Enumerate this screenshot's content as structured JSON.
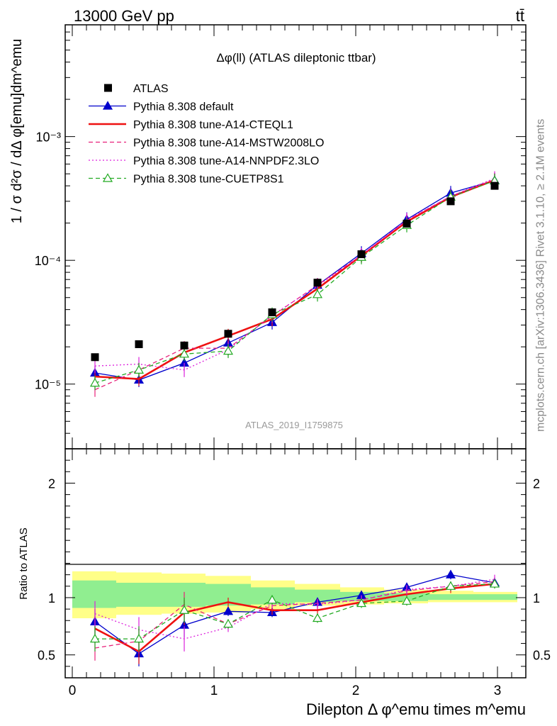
{
  "header": {
    "process": "13000 GeV pp",
    "channel": "tt̄"
  },
  "side_labels": {
    "rivet": "Rivet 3.1.10, ≥ 2.1M events",
    "source": "mcplots.cern.ch [arXiv:1306.3436]"
  },
  "chart_data": [
    {
      "type": "scatter",
      "panel": "main",
      "title": "Δφ(ll) (ATLAS dileptonic ttbar)",
      "ylabel": "1 / σ  d²σ / dΔ φ[emu]dm^emu",
      "analysis_label": "ATLAS_2019_I1759875",
      "log_y": true,
      "xlim": [
        -0.05,
        3.2
      ],
      "ylim": [
        3e-06,
        0.008
      ],
      "y_ticks": [
        "10⁻⁵",
        "10⁻⁴",
        "10⁻³"
      ],
      "legend_position": "upper-left",
      "x": [
        0.16,
        0.47,
        0.79,
        1.1,
        1.41,
        1.73,
        2.04,
        2.36,
        2.67,
        2.98
      ],
      "series": [
        {
          "name": "ATLAS",
          "color": "#000000",
          "style": "marker-square",
          "values": [
            1.65e-05,
            2.1e-05,
            2.05e-05,
            2.55e-05,
            3.8e-05,
            6.6e-05,
            0.000112,
            0.000198,
            0.0003,
            0.0004
          ]
        },
        {
          "name": "Pythia 8.308 default",
          "color": "#0000cc",
          "style": "solid-triangle",
          "values": [
            1.23e-05,
            1.08e-05,
            1.48e-05,
            2.15e-05,
            3.15e-05,
            6.3e-05,
            0.000114,
            0.000214,
            0.00035,
            0.000442
          ]
        },
        {
          "name": "Pythia 8.308 tune-A14-CTEQL1",
          "color": "#ee1111",
          "style": "solid-thick",
          "values": [
            1.15e-05,
            1.1e-05,
            1.8e-05,
            2.45e-05,
            3.35e-05,
            5.9e-05,
            0.000109,
            0.000205,
            0.000325,
            0.000445
          ]
        },
        {
          "name": "Pythia 8.308 tune-A14-MSTW2008LO",
          "color": "#e8207a",
          "style": "dashed",
          "values": [
            9e-06,
            1.3e-05,
            1.95e-05,
            1.95e-05,
            3.55e-05,
            6.3e-05,
            0.00011,
            0.00021,
            0.00033,
            0.00045
          ]
        },
        {
          "name": "Pythia 8.308 tune-A14-NNPDF2.3LO",
          "color": "#dd22dd",
          "style": "dotted",
          "values": [
            1.4e-05,
            1.45e-05,
            1.3e-05,
            1.9e-05,
            3.6e-05,
            6.2e-05,
            0.00011,
            0.000212,
            0.00033,
            0.00046
          ]
        },
        {
          "name": "Pythia 8.308 tune-CUETP8S1",
          "color": "#22aa22",
          "style": "dashed-open-triangle",
          "values": [
            1.02e-05,
            1.3e-05,
            1.75e-05,
            1.85e-05,
            3.65e-05,
            5.3e-05,
            0.000106,
            0.000192,
            0.000325,
            0.00044
          ]
        }
      ]
    },
    {
      "type": "line",
      "panel": "ratio",
      "ylabel": "Ratio to ATLAS",
      "xlabel": "Dilepton Δ φ^emu times m^emu",
      "xlim": [
        -0.05,
        3.2
      ],
      "ylim": [
        0.3,
        2.3
      ],
      "x_ticks": [
        0,
        1,
        2,
        3
      ],
      "y_ticks": [
        0.5,
        1,
        2
      ],
      "x": [
        0.16,
        0.47,
        0.79,
        1.1,
        1.41,
        1.73,
        2.04,
        2.36,
        2.67,
        2.98
      ],
      "band_edges": [
        0.0,
        0.31,
        0.63,
        0.94,
        1.26,
        1.57,
        1.89,
        2.2,
        2.51,
        2.83,
        3.14
      ],
      "band_yellow": [
        [
          0.82,
          1.23
        ],
        [
          0.85,
          1.22
        ],
        [
          0.86,
          1.21
        ],
        [
          0.87,
          1.19
        ],
        [
          0.9,
          1.15
        ],
        [
          0.93,
          1.12
        ],
        [
          0.94,
          1.09
        ],
        [
          0.95,
          1.07
        ],
        [
          0.96,
          1.06
        ],
        [
          0.96,
          1.05
        ]
      ],
      "band_green": [
        [
          0.91,
          1.15
        ],
        [
          0.92,
          1.13
        ],
        [
          0.92,
          1.13
        ],
        [
          0.93,
          1.12
        ],
        [
          0.94,
          1.09
        ],
        [
          0.96,
          1.07
        ],
        [
          0.97,
          1.05
        ],
        [
          0.97,
          1.04
        ],
        [
          0.98,
          1.03
        ],
        [
          0.98,
          1.03
        ]
      ],
      "series": [
        {
          "name": "Pythia 8.308 default",
          "color": "#0000cc",
          "style": "solid-triangle",
          "values": [
            0.79,
            0.51,
            0.76,
            0.88,
            0.87,
            0.96,
            1.02,
            1.09,
            1.2,
            1.13
          ]
        },
        {
          "name": "Pythia 8.308 tune-A14-CTEQL1",
          "color": "#ee1111",
          "style": "solid-thick",
          "values": [
            0.73,
            0.53,
            0.87,
            0.96,
            0.89,
            0.89,
            0.96,
            1.03,
            1.08,
            1.12
          ]
        },
        {
          "name": "Pythia 8.308 tune-A14-MSTW2008LO",
          "color": "#e8207a",
          "style": "dashed",
          "values": [
            0.56,
            0.62,
            0.94,
            0.77,
            0.93,
            0.95,
            0.98,
            1.06,
            1.1,
            1.14
          ]
        },
        {
          "name": "Pythia 8.308 tune-A14-NNPDF2.3LO",
          "color": "#dd22dd",
          "style": "dotted",
          "values": [
            0.86,
            0.72,
            0.64,
            0.74,
            0.95,
            0.94,
            0.98,
            1.07,
            1.1,
            1.16
          ]
        },
        {
          "name": "Pythia 8.308 tune-CUETP8S1",
          "color": "#22aa22",
          "style": "dashed-open-triangle",
          "values": [
            0.64,
            0.64,
            0.89,
            0.77,
            0.98,
            0.82,
            0.95,
            0.97,
            1.1,
            1.12
          ]
        }
      ]
    }
  ]
}
